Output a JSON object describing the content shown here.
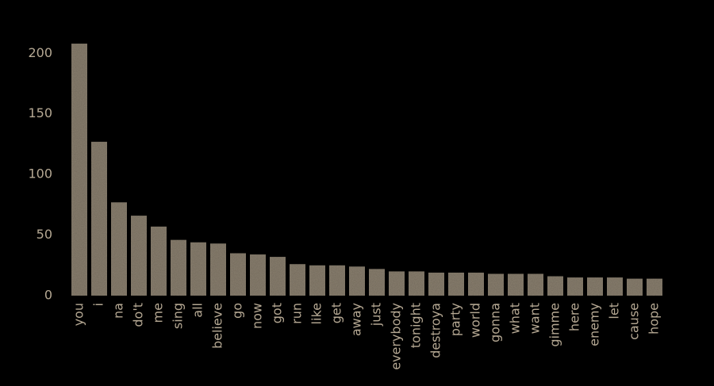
{
  "chart_data": {
    "type": "bar",
    "categories": [
      "you",
      "i",
      "na",
      "do't",
      "me",
      "sing",
      "all",
      "believe",
      "go",
      "now",
      "got",
      "run",
      "like",
      "get",
      "away",
      "just",
      "everybody",
      "tonight",
      "destroya",
      "party",
      "world",
      "gonna",
      "what",
      "want",
      "gimme",
      "here",
      "enemy",
      "let",
      "cause",
      "hope"
    ],
    "values": [
      208,
      127,
      77,
      66,
      57,
      46,
      44,
      43,
      35,
      34,
      32,
      26,
      25,
      25,
      24,
      22,
      20,
      20,
      19,
      19,
      19,
      18,
      18,
      18,
      16,
      15,
      15,
      15,
      14,
      14
    ],
    "color": "#8a8070",
    "ylim": [
      0,
      210
    ],
    "yticks": [
      0,
      50,
      100,
      150,
      200
    ],
    "grid": false
  }
}
